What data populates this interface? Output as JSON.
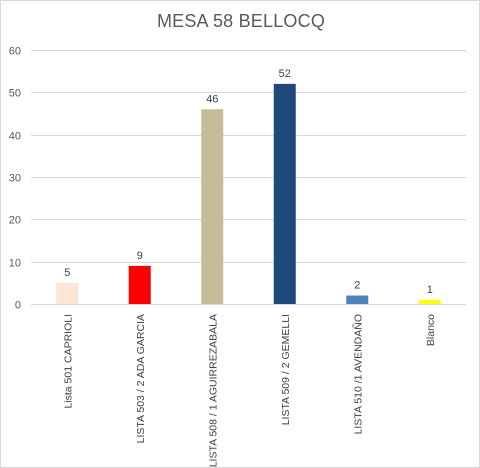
{
  "chart_data": {
    "type": "bar",
    "title": "MESA 58 BELLOCQ",
    "xlabel": "",
    "ylabel": "",
    "ylim": [
      0,
      60
    ],
    "yticks": [
      0,
      10,
      20,
      30,
      40,
      50,
      60
    ],
    "grid": true,
    "legend": "none",
    "categories": [
      "Lista 501  CAPRIOLI",
      "LISTA 503  / 2  ADA GARCIA",
      "LISTA 508 / 1 AGUIRREZABALA",
      "LISTA 509 / 2 GEMELLI",
      "LISTA 510 /1 AVENDAÑO",
      "Blanco"
    ],
    "values": [
      5,
      9,
      46,
      52,
      2,
      1
    ],
    "colors": [
      "#fce4d6",
      "#ff0000",
      "#c4bd97",
      "#1f497d",
      "#4f81bd",
      "#ffff00"
    ],
    "data_labels": [
      "5",
      "9",
      "46",
      "52",
      "2",
      "1"
    ]
  }
}
